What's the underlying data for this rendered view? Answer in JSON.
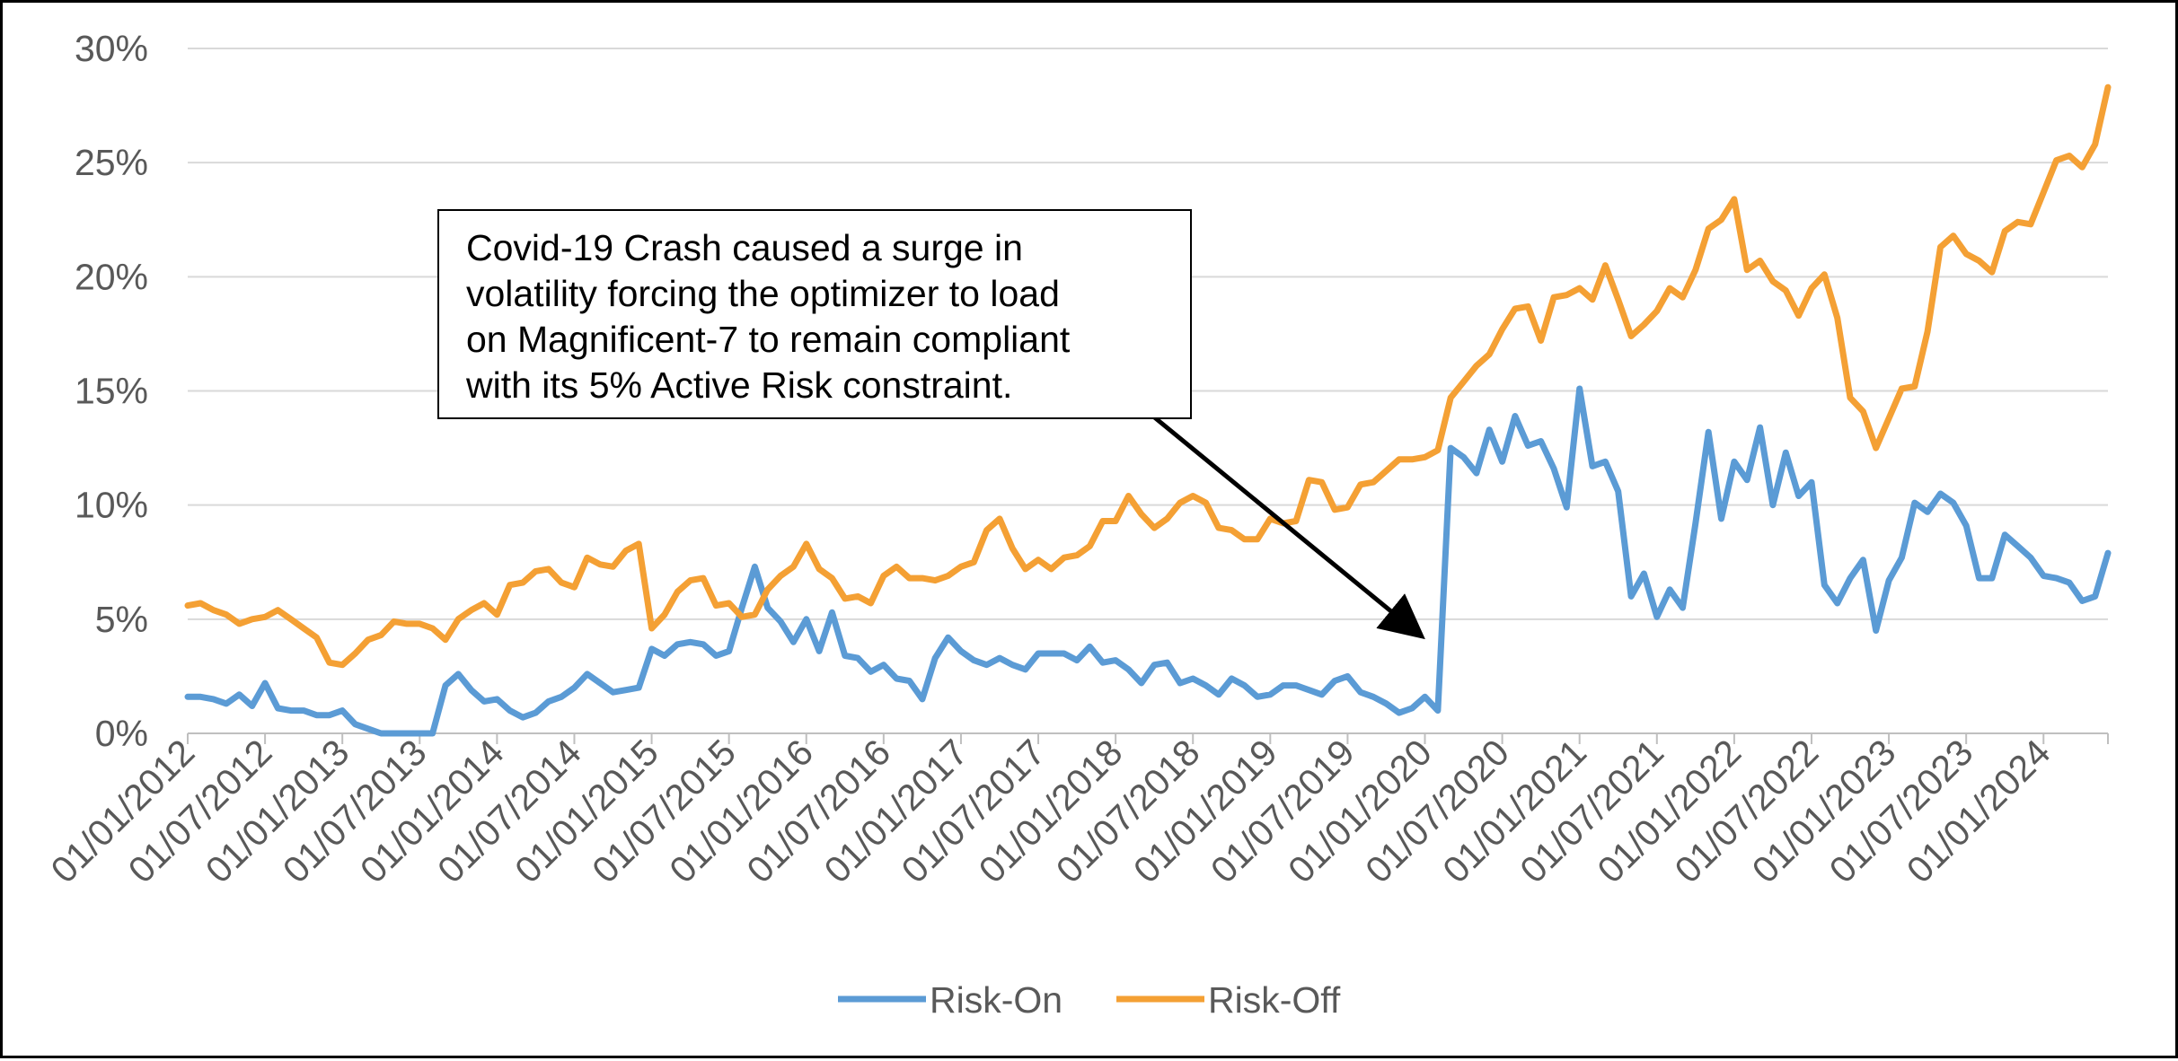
{
  "chart_data": {
    "type": "line",
    "title": "",
    "xlabel": "",
    "ylabel": "",
    "ylim": [
      0,
      30
    ],
    "yticks": [
      "0%",
      "5%",
      "10%",
      "15%",
      "20%",
      "25%",
      "30%"
    ],
    "grid": true,
    "legend_position": "bottom",
    "x_start": "2012-01",
    "x_end": "2024-12",
    "xtick_labels": [
      "01/01/2012",
      "01/07/2012",
      "01/01/2013",
      "01/07/2013",
      "01/01/2014",
      "01/07/2014",
      "01/01/2015",
      "01/07/2015",
      "01/01/2016",
      "01/07/2016",
      "01/01/2017",
      "01/07/2017",
      "01/01/2018",
      "01/07/2018",
      "01/01/2019",
      "01/07/2019",
      "01/01/2020",
      "01/07/2020",
      "01/01/2021",
      "01/07/2021",
      "01/01/2022",
      "01/07/2022",
      "01/01/2023",
      "01/07/2023",
      "01/01/2024"
    ],
    "series": [
      {
        "name": "Risk-On",
        "color": "#5B9BD5",
        "values": [
          1.6,
          1.6,
          1.5,
          1.3,
          1.7,
          1.2,
          2.2,
          1.1,
          1.0,
          1.0,
          0.8,
          0.8,
          1.0,
          0.4,
          0.2,
          0.0,
          0.0,
          0.0,
          0.0,
          0.0,
          2.1,
          2.6,
          1.9,
          1.4,
          1.5,
          1.0,
          0.7,
          0.9,
          1.4,
          1.6,
          2.0,
          2.6,
          2.2,
          1.8,
          1.9,
          2.0,
          3.7,
          3.4,
          3.9,
          4.0,
          3.9,
          3.4,
          3.6,
          5.5,
          7.3,
          5.5,
          4.9,
          4.0,
          5.0,
          3.6,
          5.3,
          3.4,
          3.3,
          2.7,
          3.0,
          2.4,
          2.3,
          1.5,
          3.3,
          4.2,
          3.6,
          3.2,
          3.0,
          3.3,
          3.0,
          2.8,
          3.5,
          3.5,
          3.5,
          3.2,
          3.8,
          3.1,
          3.2,
          2.8,
          2.2,
          3.0,
          3.1,
          2.2,
          2.4,
          2.1,
          1.7,
          2.4,
          2.1,
          1.6,
          1.7,
          2.1,
          2.1,
          1.9,
          1.7,
          2.3,
          2.5,
          1.8,
          1.6,
          1.3,
          0.9,
          1.1,
          1.6,
          1.0,
          12.5,
          12.1,
          11.4,
          13.3,
          11.9,
          13.9,
          12.6,
          12.8,
          11.6,
          9.9,
          15.1,
          11.7,
          11.9,
          10.6,
          6.0,
          7.0,
          5.1,
          6.3,
          5.5,
          9.2,
          13.2,
          9.4,
          11.9,
          11.1,
          13.4,
          10.0,
          12.3,
          10.4,
          11.0,
          6.5,
          5.7,
          6.8,
          7.6,
          4.5,
          6.7,
          7.7,
          10.1,
          9.7,
          10.5,
          10.1,
          9.1,
          6.8,
          6.8,
          8.7,
          8.2,
          7.7,
          6.9,
          6.8,
          6.6,
          5.8,
          6.0,
          7.9
        ]
      },
      {
        "name": "Risk-Off",
        "color": "#F4A034",
        "values": [
          5.6,
          5.7,
          5.4,
          5.2,
          4.8,
          5.0,
          5.1,
          5.4,
          5.0,
          4.6,
          4.2,
          3.1,
          3.0,
          3.5,
          4.1,
          4.3,
          4.9,
          4.8,
          4.8,
          4.6,
          4.1,
          5.0,
          5.4,
          5.7,
          5.2,
          6.5,
          6.6,
          7.1,
          7.2,
          6.6,
          6.4,
          7.7,
          7.4,
          7.3,
          8.0,
          8.3,
          4.6,
          5.2,
          6.2,
          6.7,
          6.8,
          5.6,
          5.7,
          5.1,
          5.2,
          6.3,
          6.9,
          7.3,
          8.3,
          7.2,
          6.8,
          5.9,
          6.0,
          5.7,
          6.9,
          7.3,
          6.8,
          6.8,
          6.7,
          6.9,
          7.3,
          7.5,
          8.9,
          9.4,
          8.1,
          7.2,
          7.6,
          7.2,
          7.7,
          7.8,
          8.2,
          9.3,
          9.3,
          10.4,
          9.6,
          9.0,
          9.4,
          10.1,
          10.4,
          10.1,
          9.0,
          8.9,
          8.5,
          8.5,
          9.4,
          9.2,
          9.3,
          11.1,
          11.0,
          9.8,
          9.9,
          10.9,
          11.0,
          11.5,
          12.0,
          12.0,
          12.1,
          12.4,
          14.7,
          15.4,
          16.1,
          16.6,
          17.7,
          18.6,
          18.7,
          17.2,
          19.1,
          19.2,
          19.5,
          19.0,
          20.5,
          19.0,
          17.4,
          17.9,
          18.5,
          19.5,
          19.1,
          20.3,
          22.1,
          22.5,
          23.4,
          20.3,
          20.7,
          19.8,
          19.4,
          18.3,
          19.5,
          20.1,
          18.2,
          14.7,
          14.1,
          12.5,
          13.8,
          15.1,
          15.2,
          17.6,
          21.3,
          21.8,
          21.0,
          20.7,
          20.2,
          22.0,
          22.4,
          22.3,
          23.7,
          25.1,
          25.3,
          24.8,
          25.8,
          28.3
        ]
      }
    ]
  },
  "annotation": {
    "text": "Covid-19 Crash caused a surge in\nvolatility forcing the optimizer to load\non Magnificent-7 to remain compliant\nwith its 5% Active Risk constraint."
  }
}
